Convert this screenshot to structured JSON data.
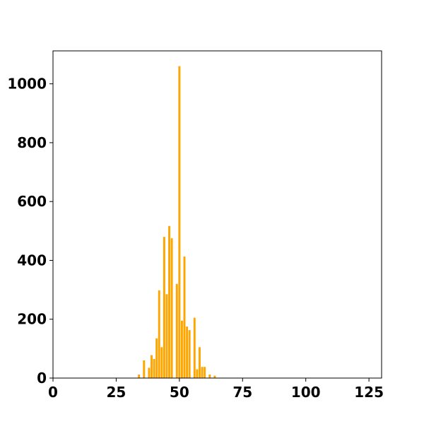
{
  "chart_data": {
    "type": "bar",
    "title": "",
    "xlabel": "",
    "ylabel": "",
    "xlim": [
      0,
      130
    ],
    "ylim": [
      0,
      1112
    ],
    "grid": false,
    "bar_color": "#ffa500",
    "x_ticks": [
      {
        "value": 0,
        "label": "0"
      },
      {
        "value": 25,
        "label": "25"
      },
      {
        "value": 50,
        "label": "50"
      },
      {
        "value": 75,
        "label": "75"
      },
      {
        "value": 100,
        "label": "100"
      },
      {
        "value": 125,
        "label": "125"
      }
    ],
    "y_ticks": [
      {
        "value": 0,
        "label": "0"
      },
      {
        "value": 200,
        "label": "200"
      },
      {
        "value": 400,
        "label": "400"
      },
      {
        "value": 600,
        "label": "600"
      },
      {
        "value": 800,
        "label": "800"
      },
      {
        "value": 1000,
        "label": "1000"
      }
    ],
    "bars": [
      {
        "x": 34,
        "y": 12
      },
      {
        "x": 35,
        "y": 0
      },
      {
        "x": 36,
        "y": 60
      },
      {
        "x": 37,
        "y": 0
      },
      {
        "x": 38,
        "y": 35
      },
      {
        "x": 39,
        "y": 78
      },
      {
        "x": 40,
        "y": 65
      },
      {
        "x": 41,
        "y": 135
      },
      {
        "x": 42,
        "y": 298
      },
      {
        "x": 43,
        "y": 105
      },
      {
        "x": 44,
        "y": 480
      },
      {
        "x": 45,
        "y": 285
      },
      {
        "x": 46,
        "y": 517
      },
      {
        "x": 47,
        "y": 475
      },
      {
        "x": 48,
        "y": 0
      },
      {
        "x": 49,
        "y": 320
      },
      {
        "x": 50,
        "y": 1060
      },
      {
        "x": 51,
        "y": 195
      },
      {
        "x": 52,
        "y": 413
      },
      {
        "x": 53,
        "y": 175
      },
      {
        "x": 54,
        "y": 163
      },
      {
        "x": 55,
        "y": 0
      },
      {
        "x": 56,
        "y": 205
      },
      {
        "x": 57,
        "y": 30
      },
      {
        "x": 58,
        "y": 105
      },
      {
        "x": 59,
        "y": 38
      },
      {
        "x": 60,
        "y": 38
      },
      {
        "x": 61,
        "y": 0
      },
      {
        "x": 62,
        "y": 12
      },
      {
        "x": 63,
        "y": 0
      },
      {
        "x": 64,
        "y": 8
      }
    ]
  }
}
